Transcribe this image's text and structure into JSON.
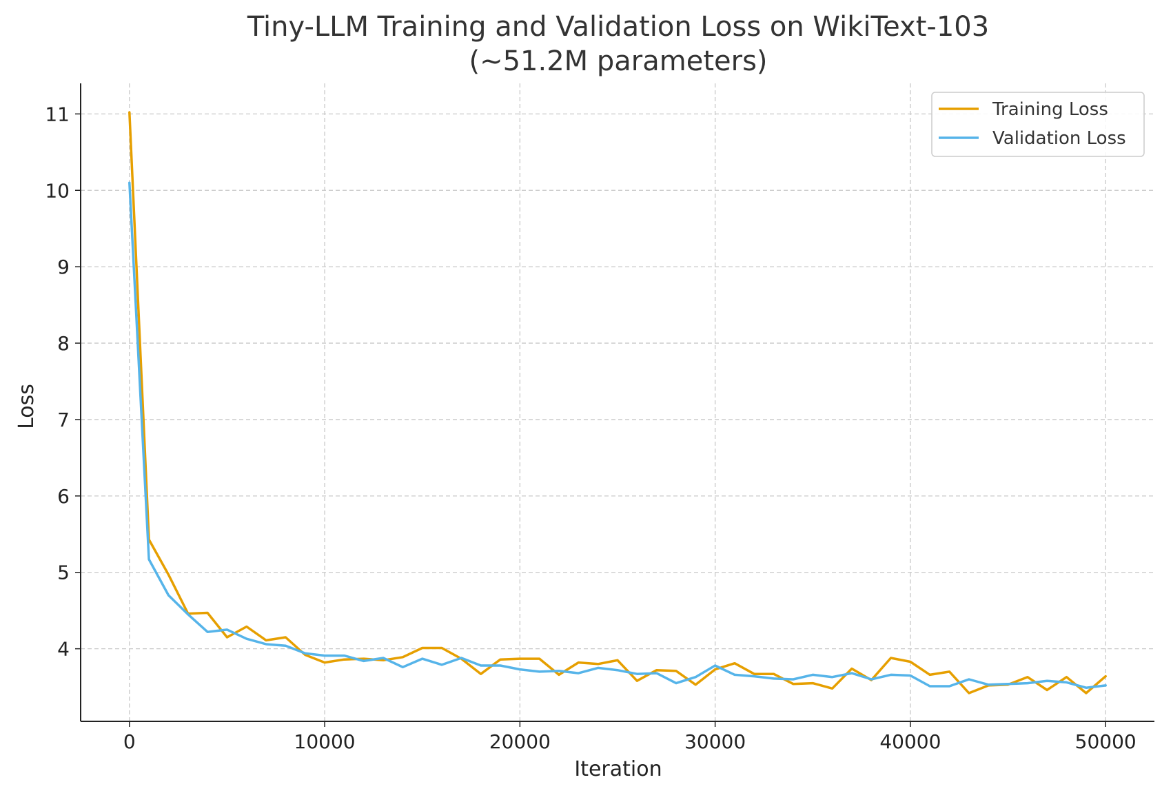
{
  "chart_data": {
    "type": "line",
    "title": "Tiny-LLM Training and Validation Loss on WikiText-103",
    "subtitle": "(~51.2M parameters)",
    "xlabel": "Iteration",
    "ylabel": "Loss",
    "xlim": [
      -2500,
      52500
    ],
    "ylim": [
      3.05,
      11.4
    ],
    "xticks": [
      0,
      10000,
      20000,
      30000,
      40000,
      50000
    ],
    "yticks": [
      4,
      5,
      6,
      7,
      8,
      9,
      10,
      11
    ],
    "grid": true,
    "legend_position": "top-right",
    "x": [
      0,
      1000,
      2000,
      3000,
      4000,
      5000,
      6000,
      7000,
      8000,
      9000,
      10000,
      11000,
      12000,
      13000,
      14000,
      15000,
      16000,
      17000,
      18000,
      19000,
      20000,
      21000,
      22000,
      23000,
      24000,
      25000,
      26000,
      27000,
      28000,
      29000,
      30000,
      31000,
      32000,
      33000,
      34000,
      35000,
      36000,
      37000,
      38000,
      39000,
      40000,
      41000,
      42000,
      43000,
      44000,
      45000,
      46000,
      47000,
      48000,
      49000,
      50000
    ],
    "series": [
      {
        "name": "Training Loss",
        "color": "#E69F00",
        "values": [
          11.02,
          5.43,
          4.97,
          4.46,
          4.47,
          4.15,
          4.29,
          4.11,
          4.15,
          3.92,
          3.82,
          3.86,
          3.87,
          3.85,
          3.89,
          4.01,
          4.01,
          3.87,
          3.67,
          3.86,
          3.87,
          3.87,
          3.66,
          3.82,
          3.8,
          3.85,
          3.58,
          3.72,
          3.71,
          3.53,
          3.73,
          3.81,
          3.67,
          3.67,
          3.54,
          3.55,
          3.48,
          3.74,
          3.59,
          3.88,
          3.83,
          3.66,
          3.7,
          3.42,
          3.52,
          3.53,
          3.63,
          3.46,
          3.63,
          3.42,
          3.64
        ]
      },
      {
        "name": "Validation Loss",
        "color": "#56B4E9",
        "values": [
          10.1,
          5.17,
          4.7,
          4.45,
          4.22,
          4.25,
          4.13,
          4.06,
          4.04,
          3.94,
          3.91,
          3.91,
          3.84,
          3.88,
          3.76,
          3.87,
          3.79,
          3.88,
          3.78,
          3.78,
          3.73,
          3.7,
          3.71,
          3.68,
          3.75,
          3.72,
          3.67,
          3.68,
          3.55,
          3.63,
          3.78,
          3.66,
          3.64,
          3.61,
          3.6,
          3.66,
          3.63,
          3.68,
          3.6,
          3.66,
          3.65,
          3.51,
          3.51,
          3.6,
          3.53,
          3.54,
          3.55,
          3.58,
          3.56,
          3.49,
          3.52
        ]
      }
    ]
  }
}
